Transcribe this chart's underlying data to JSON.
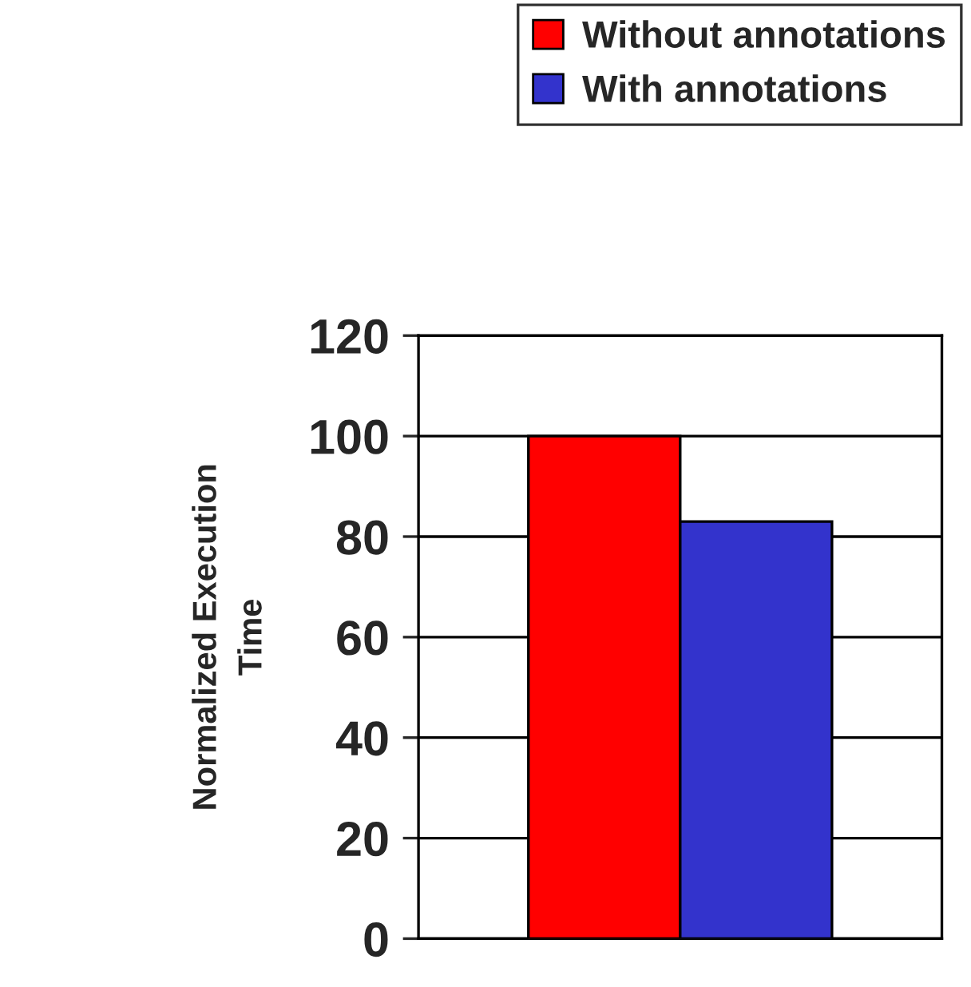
{
  "chart_data": {
    "type": "bar",
    "ylabel": "Normalized Execution\nTime",
    "categories": [
      null
    ],
    "series": [
      {
        "name": "Without annotations",
        "color": "#ff0000",
        "values": [
          100
        ]
      },
      {
        "name": "With annotations",
        "color": "#3333cc",
        "values": [
          83
        ]
      }
    ],
    "ylim": [
      0,
      120
    ],
    "yticks": [
      0,
      20,
      40,
      60,
      80,
      100,
      120
    ],
    "grid": "y",
    "legend": "top right"
  }
}
